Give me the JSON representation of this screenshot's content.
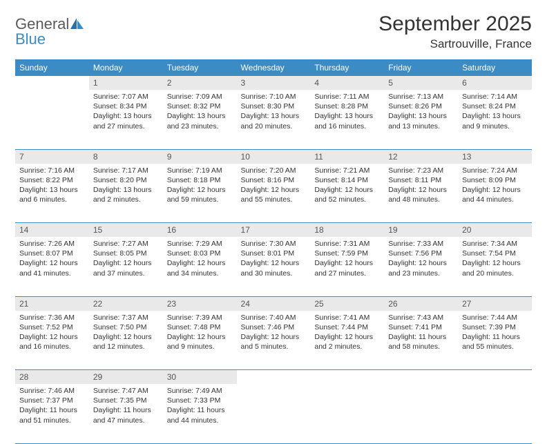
{
  "logo": {
    "text1": "General",
    "text2": "Blue"
  },
  "title": "September 2025",
  "location": "Sartrouville, France",
  "colors": {
    "header_bg": "#3b8bc4",
    "daynum_bg": "#e9e9e9",
    "rule": "#3b8bc4"
  },
  "day_headers": [
    "Sunday",
    "Monday",
    "Tuesday",
    "Wednesday",
    "Thursday",
    "Friday",
    "Saturday"
  ],
  "weeks": [
    [
      null,
      {
        "n": "1",
        "sunrise": "7:07 AM",
        "sunset": "8:34 PM",
        "daylight": "13 hours and 27 minutes."
      },
      {
        "n": "2",
        "sunrise": "7:09 AM",
        "sunset": "8:32 PM",
        "daylight": "13 hours and 23 minutes."
      },
      {
        "n": "3",
        "sunrise": "7:10 AM",
        "sunset": "8:30 PM",
        "daylight": "13 hours and 20 minutes."
      },
      {
        "n": "4",
        "sunrise": "7:11 AM",
        "sunset": "8:28 PM",
        "daylight": "13 hours and 16 minutes."
      },
      {
        "n": "5",
        "sunrise": "7:13 AM",
        "sunset": "8:26 PM",
        "daylight": "13 hours and 13 minutes."
      },
      {
        "n": "6",
        "sunrise": "7:14 AM",
        "sunset": "8:24 PM",
        "daylight": "13 hours and 9 minutes."
      }
    ],
    [
      {
        "n": "7",
        "sunrise": "7:16 AM",
        "sunset": "8:22 PM",
        "daylight": "13 hours and 6 minutes."
      },
      {
        "n": "8",
        "sunrise": "7:17 AM",
        "sunset": "8:20 PM",
        "daylight": "13 hours and 2 minutes."
      },
      {
        "n": "9",
        "sunrise": "7:19 AM",
        "sunset": "8:18 PM",
        "daylight": "12 hours and 59 minutes."
      },
      {
        "n": "10",
        "sunrise": "7:20 AM",
        "sunset": "8:16 PM",
        "daylight": "12 hours and 55 minutes."
      },
      {
        "n": "11",
        "sunrise": "7:21 AM",
        "sunset": "8:14 PM",
        "daylight": "12 hours and 52 minutes."
      },
      {
        "n": "12",
        "sunrise": "7:23 AM",
        "sunset": "8:11 PM",
        "daylight": "12 hours and 48 minutes."
      },
      {
        "n": "13",
        "sunrise": "7:24 AM",
        "sunset": "8:09 PM",
        "daylight": "12 hours and 44 minutes."
      }
    ],
    [
      {
        "n": "14",
        "sunrise": "7:26 AM",
        "sunset": "8:07 PM",
        "daylight": "12 hours and 41 minutes."
      },
      {
        "n": "15",
        "sunrise": "7:27 AM",
        "sunset": "8:05 PM",
        "daylight": "12 hours and 37 minutes."
      },
      {
        "n": "16",
        "sunrise": "7:29 AM",
        "sunset": "8:03 PM",
        "daylight": "12 hours and 34 minutes."
      },
      {
        "n": "17",
        "sunrise": "7:30 AM",
        "sunset": "8:01 PM",
        "daylight": "12 hours and 30 minutes."
      },
      {
        "n": "18",
        "sunrise": "7:31 AM",
        "sunset": "7:59 PM",
        "daylight": "12 hours and 27 minutes."
      },
      {
        "n": "19",
        "sunrise": "7:33 AM",
        "sunset": "7:56 PM",
        "daylight": "12 hours and 23 minutes."
      },
      {
        "n": "20",
        "sunrise": "7:34 AM",
        "sunset": "7:54 PM",
        "daylight": "12 hours and 20 minutes."
      }
    ],
    [
      {
        "n": "21",
        "sunrise": "7:36 AM",
        "sunset": "7:52 PM",
        "daylight": "12 hours and 16 minutes."
      },
      {
        "n": "22",
        "sunrise": "7:37 AM",
        "sunset": "7:50 PM",
        "daylight": "12 hours and 12 minutes."
      },
      {
        "n": "23",
        "sunrise": "7:39 AM",
        "sunset": "7:48 PM",
        "daylight": "12 hours and 9 minutes."
      },
      {
        "n": "24",
        "sunrise": "7:40 AM",
        "sunset": "7:46 PM",
        "daylight": "12 hours and 5 minutes."
      },
      {
        "n": "25",
        "sunrise": "7:41 AM",
        "sunset": "7:44 PM",
        "daylight": "12 hours and 2 minutes."
      },
      {
        "n": "26",
        "sunrise": "7:43 AM",
        "sunset": "7:41 PM",
        "daylight": "11 hours and 58 minutes."
      },
      {
        "n": "27",
        "sunrise": "7:44 AM",
        "sunset": "7:39 PM",
        "daylight": "11 hours and 55 minutes."
      }
    ],
    [
      {
        "n": "28",
        "sunrise": "7:46 AM",
        "sunset": "7:37 PM",
        "daylight": "11 hours and 51 minutes."
      },
      {
        "n": "29",
        "sunrise": "7:47 AM",
        "sunset": "7:35 PM",
        "daylight": "11 hours and 47 minutes."
      },
      {
        "n": "30",
        "sunrise": "7:49 AM",
        "sunset": "7:33 PM",
        "daylight": "11 hours and 44 minutes."
      },
      null,
      null,
      null,
      null
    ]
  ],
  "labels": {
    "sunrise": "Sunrise:",
    "sunset": "Sunset:",
    "daylight": "Daylight:"
  }
}
